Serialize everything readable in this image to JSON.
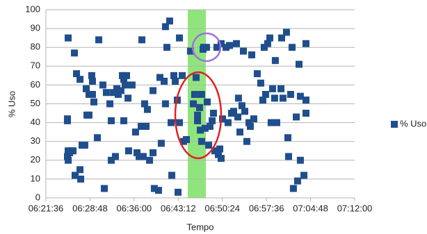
{
  "chart_data": {
    "type": "scatter",
    "xlabel": "Tempo",
    "ylabel": "% Uso",
    "xlim": [
      22896,
      25920
    ],
    "xticks": [
      {
        "value": 22896,
        "label": "06:21:36"
      },
      {
        "value": 23328,
        "label": "06:28:48"
      },
      {
        "value": 23760,
        "label": "06:36:00"
      },
      {
        "value": 24192,
        "label": "06:43:12"
      },
      {
        "value": 24624,
        "label": "06:50:24"
      },
      {
        "value": 25056,
        "label": "06:57:36"
      },
      {
        "value": 25488,
        "label": "07:04:48"
      },
      {
        "value": 25920,
        "label": "07:12:00"
      }
    ],
    "ylim": [
      0,
      100
    ],
    "yticks": [
      0,
      10,
      20,
      30,
      40,
      50,
      60,
      70,
      80,
      90,
      100
    ],
    "grid": true,
    "legend": "right",
    "series": [
      {
        "name": "% Uso",
        "color": "#1f4e8c",
        "x": [
          23114,
          23175,
          23107,
          23107,
          23114,
          23128,
          23141,
          23162,
          23114,
          23107,
          23182,
          23230,
          23237,
          23196,
          23230,
          23250,
          23277,
          23298,
          23318,
          23291,
          23318,
          23352,
          23345,
          23352,
          23366,
          23400,
          23414,
          23454,
          23468,
          23488,
          23523,
          23536,
          23536,
          23557,
          23577,
          23591,
          23604,
          23631,
          23645,
          23659,
          23672,
          23686,
          23700,
          23659,
          23706,
          23740,
          23774,
          23788,
          23809,
          23829,
          23836,
          23849,
          23863,
          23877,
          23890,
          23911,
          23945,
          23945,
          23958,
          23999,
          24013,
          24026,
          24054,
          24067,
          24067,
          24081,
          24108,
          24122,
          24129,
          24149,
          24163,
          24183,
          24190,
          24204,
          24204,
          24231,
          24244,
          24272,
          24312,
          24340,
          24353,
          24367,
          24381,
          24381,
          24401,
          24408,
          24421,
          24435,
          24421,
          24442,
          24455,
          24469,
          24476,
          24490,
          24503,
          24524,
          24537,
          24551,
          24571,
          24585,
          24599,
          24612,
          24612,
          24626,
          24660,
          24680,
          24694,
          24714,
          24735,
          24762,
          24776,
          24782,
          24796,
          24816,
          24830,
          24844,
          24864,
          24885,
          24898,
          24912,
          24932,
          24966,
          25000,
          25021,
          25034,
          25048,
          25068,
          25089,
          25102,
          25116,
          25136,
          25143,
          25157,
          25198,
          25205,
          25218,
          25252,
          25266,
          25273,
          25293,
          25307,
          25320,
          25348,
          25361,
          25375,
          25388,
          25388,
          25423,
          25443,
          25443,
          25443
        ],
        "values": [
          85,
          77,
          42,
          41,
          25,
          24,
          25,
          25,
          20,
          22,
          12,
          15,
          10,
          66,
          63,
          28,
          28,
          44,
          44,
          58,
          55,
          55,
          65,
          62,
          51,
          32,
          84,
          60,
          5,
          56,
          50,
          41,
          20,
          56,
          22,
          58,
          55,
          57,
          65,
          63,
          60,
          65,
          53,
          41,
          25,
          60,
          35,
          24,
          22,
          38,
          84,
          22,
          50,
          38,
          47,
          20,
          57,
          24,
          5,
          4,
          64,
          29,
          62,
          50,
          91,
          80,
          94,
          40,
          12,
          65,
          62,
          52,
          3,
          85,
          40,
          65,
          30,
          31,
          78,
          50,
          55,
          64,
          44,
          41,
          48,
          36,
          30,
          79,
          55,
          80,
          37,
          80,
          51,
          28,
          38,
          41,
          45,
          25,
          80,
          23,
          26,
          21,
          82,
          42,
          80,
          40,
          81,
          45,
          46,
          82,
          43,
          53,
          35,
          49,
          78,
          46,
          30,
          40,
          38,
          76,
          42,
          66,
          61,
          52,
          80,
          55,
          82,
          85,
          40,
          58,
          53,
          73,
          40,
          58,
          85,
          53,
          88,
          32,
          22,
          55,
          80,
          5,
          43,
          9,
          71,
          20,
          54,
          12,
          82,
          45,
          52
        ]
      }
    ]
  }
}
